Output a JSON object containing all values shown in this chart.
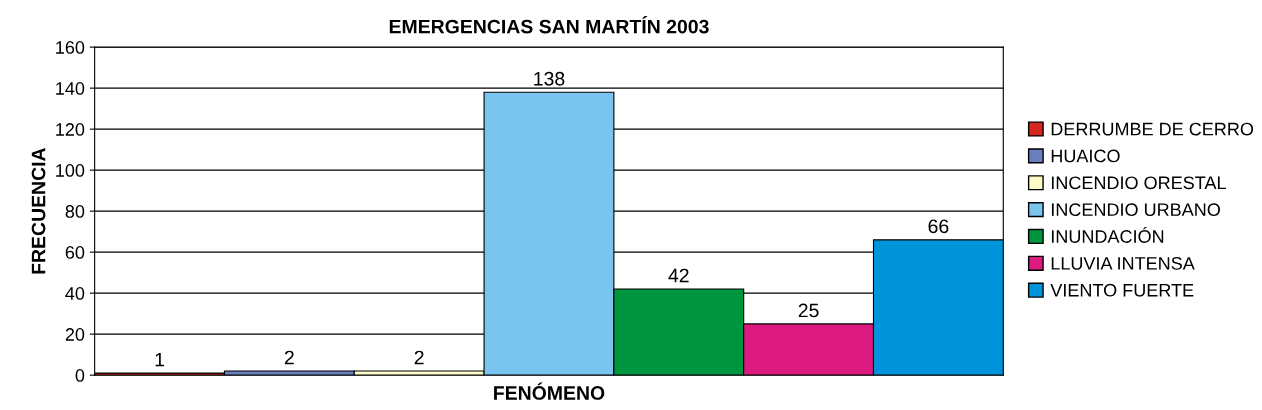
{
  "chart_data": {
    "type": "bar",
    "title": "EMERGENCIAS SAN MARTÍN 2003",
    "xlabel": "FENÓMENO",
    "ylabel": "FRECUENCIA",
    "categories": [
      null,
      null,
      null,
      null,
      null,
      null,
      null
    ],
    "series": [
      {
        "name": "DERRUMBE DE CERRO",
        "color": "#d7261e",
        "values": [
          1,
          null,
          null,
          null,
          null,
          null,
          null
        ]
      },
      {
        "name": "HUAICO",
        "color": "#6a7fbf",
        "values": [
          null,
          2,
          null,
          null,
          null,
          null,
          null
        ]
      },
      {
        "name": "INCENDIO ORESTAL",
        "color": "#fffbc8",
        "values": [
          null,
          null,
          2,
          null,
          null,
          null,
          null
        ]
      },
      {
        "name": "INCENDIO URBANO",
        "color": "#79c5ef",
        "values": [
          null,
          null,
          null,
          138,
          null,
          null,
          null
        ]
      },
      {
        "name": "INUNDACIÓN",
        "color": "#00963f",
        "values": [
          null,
          null,
          null,
          null,
          42,
          null,
          null
        ]
      },
      {
        "name": "LLUVIA INTENSA",
        "color": "#dc1a7f",
        "values": [
          null,
          null,
          null,
          null,
          null,
          25,
          null
        ]
      },
      {
        "name": "VIENTO FUERTE",
        "color": "#0095db",
        "values": [
          null,
          null,
          null,
          null,
          null,
          null,
          66
        ]
      }
    ],
    "ylim": [
      0,
      160
    ],
    "yticks": [
      0,
      20,
      40,
      60,
      80,
      100,
      120,
      140,
      160
    ],
    "grid": "y",
    "legend": "right",
    "data_labels": true
  }
}
